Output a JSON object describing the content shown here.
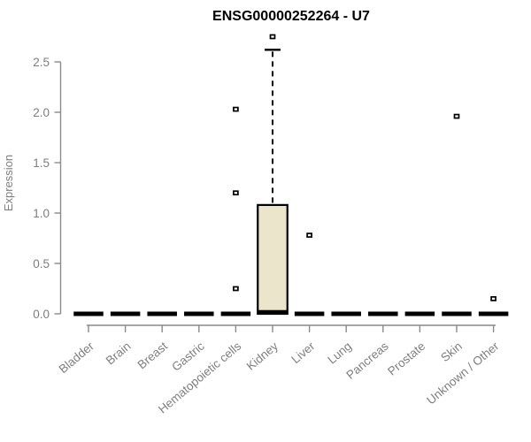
{
  "chart_data": {
    "type": "boxplot",
    "title": "ENSG00000252264 - U7",
    "ylabel": "Expression",
    "xlabel": "",
    "ylim": [
      0,
      2.78
    ],
    "yticks": [
      "0.0",
      "0.5",
      "1.0",
      "1.5",
      "2.0",
      "2.5"
    ],
    "grid": false,
    "legend": "none",
    "categories": [
      "Bladder",
      "Brain",
      "Breast",
      "Gastric",
      "Hematopoietic cells",
      "Kidney",
      "Liver",
      "Lung",
      "Pancreas",
      "Prostate",
      "Skin",
      "Unknown / Other"
    ],
    "series": [
      {
        "category": "Bladder",
        "whisker_low": 0,
        "q1": 0,
        "median": 0,
        "q3": 0,
        "whisker_high": 0,
        "outliers": []
      },
      {
        "category": "Brain",
        "whisker_low": 0,
        "q1": 0,
        "median": 0,
        "q3": 0,
        "whisker_high": 0,
        "outliers": []
      },
      {
        "category": "Breast",
        "whisker_low": 0,
        "q1": 0,
        "median": 0,
        "q3": 0,
        "whisker_high": 0,
        "outliers": []
      },
      {
        "category": "Gastric",
        "whisker_low": 0,
        "q1": 0,
        "median": 0,
        "q3": 0,
        "whisker_high": 0,
        "outliers": []
      },
      {
        "category": "Hematopoietic cells",
        "whisker_low": 0,
        "q1": 0,
        "median": 0,
        "q3": 0,
        "whisker_high": 0,
        "outliers": [
          0.25,
          1.2,
          2.03
        ]
      },
      {
        "category": "Kidney",
        "whisker_low": 0,
        "q1": 0,
        "median": 0.02,
        "q3": 1.08,
        "whisker_high": 2.62,
        "outliers": [
          2.75
        ]
      },
      {
        "category": "Liver",
        "whisker_low": 0,
        "q1": 0,
        "median": 0,
        "q3": 0,
        "whisker_high": 0,
        "outliers": [
          0.78
        ]
      },
      {
        "category": "Lung",
        "whisker_low": 0,
        "q1": 0,
        "median": 0,
        "q3": 0,
        "whisker_high": 0,
        "outliers": []
      },
      {
        "category": "Pancreas",
        "whisker_low": 0,
        "q1": 0,
        "median": 0,
        "q3": 0,
        "whisker_high": 0,
        "outliers": []
      },
      {
        "category": "Prostate",
        "whisker_low": 0,
        "q1": 0,
        "median": 0,
        "q3": 0,
        "whisker_high": 0,
        "outliers": []
      },
      {
        "category": "Skin",
        "whisker_low": 0,
        "q1": 0,
        "median": 0,
        "q3": 0,
        "whisker_high": 0,
        "outliers": [
          1.96
        ]
      },
      {
        "category": "Unknown / Other",
        "whisker_low": 0,
        "q1": 0,
        "median": 0,
        "q3": 0,
        "whisker_high": 0,
        "outliers": [
          0.15
        ]
      }
    ],
    "colors": {
      "box_fill": "#EBE6CB",
      "box_stroke": "#000000",
      "median": "#000000",
      "whisker": "#000000",
      "outlier_stroke": "#000000",
      "outlier_fill": "#ffffff",
      "axis": "#8a8a8a",
      "label": "#7e7e7e",
      "title": "#000000",
      "background": "#ffffff"
    }
  }
}
